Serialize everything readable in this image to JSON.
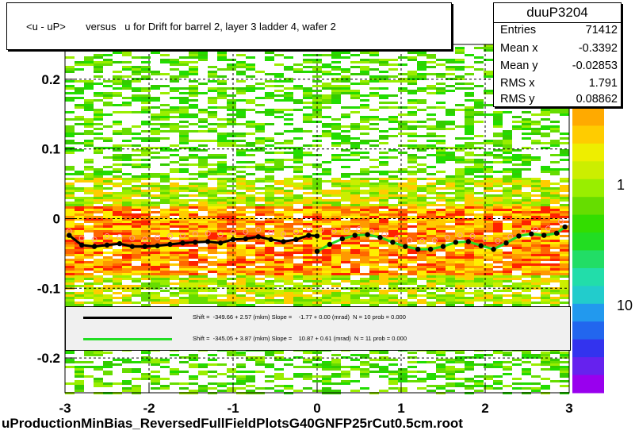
{
  "chart_data": {
    "type": "heatmap",
    "title": "<u - uP>       versus   u for Drift for barrel 2, layer 3 ladder 4, wafer 2",
    "xlabel": "uProductionMinBias_ReversedFullFieldPlotsG40GNFP25rCut0.5cm.root",
    "ylabel": "",
    "xlim": [
      -3,
      3
    ],
    "ylim": [
      -0.25,
      0.25
    ],
    "x_ticks": [
      "-3",
      "-2",
      "-1",
      "0",
      "1",
      "2",
      "3"
    ],
    "y_ticks": [
      "-0.2",
      "-0.1",
      "0",
      "0.1",
      "0.2"
    ],
    "z_ticks": [
      "1",
      "10"
    ],
    "z_scale": "log",
    "grid": true,
    "colors": {
      "frame": "#000000",
      "series_black": "#000000",
      "series_green": "#22dd22",
      "profile_markers": "#ff9999"
    },
    "stats": {
      "name": "duuP3204",
      "rows": [
        {
          "label": "Entries",
          "value": "71412"
        },
        {
          "label": "Mean x",
          "value": "-0.3392"
        },
        {
          "label": "Mean y",
          "value": "-0.02853"
        },
        {
          "label": "RMS x",
          "value": "1.791"
        },
        {
          "label": "RMS y",
          "value": "0.08862"
        }
      ]
    },
    "legend": [
      {
        "color": "#000000",
        "text": "Shift =  -349.66 + 2.57 (mkm) Slope =    -1.77 + 0.00 (mrad)  N = 10 prob = 0.000"
      },
      {
        "color": "#22dd22",
        "text": "Shift =  -345.05 + 3.87 (mkm) Slope =    10.87 + 0.61 (mrad)  N = 11 prob = 0.000"
      }
    ],
    "series": [
      {
        "x": [
          -2.95,
          -2.8,
          -2.65,
          -2.5,
          -2.35,
          -2.2,
          -2.05,
          -1.9,
          -1.75,
          -1.6,
          -1.45,
          -1.3,
          -1.15,
          -1.0,
          -0.85,
          -0.7,
          -0.55,
          -0.4,
          -0.25,
          -0.1,
          0.0
        ],
        "y": [
          -0.024,
          -0.038,
          -0.04,
          -0.038,
          -0.036,
          -0.04,
          -0.04,
          -0.039,
          -0.037,
          -0.035,
          -0.034,
          -0.033,
          -0.035,
          -0.03,
          -0.029,
          -0.026,
          -0.03,
          -0.033,
          -0.03,
          -0.024,
          -0.025
        ]
      },
      {
        "x": [
          0.0,
          0.15,
          0.3,
          0.45,
          0.6,
          0.75,
          0.9,
          1.05,
          1.2,
          1.35,
          1.5,
          1.65,
          1.8,
          1.95,
          2.1,
          2.25,
          2.4,
          2.55,
          2.7,
          2.85,
          2.95
        ],
        "y": [
          -0.047,
          -0.037,
          -0.029,
          -0.024,
          -0.023,
          -0.027,
          -0.034,
          -0.04,
          -0.044,
          -0.044,
          -0.04,
          -0.034,
          -0.033,
          -0.039,
          -0.044,
          -0.035,
          -0.025,
          -0.022,
          -0.024,
          -0.021,
          -0.012
        ]
      },
      {
        "x": [
          -2.95,
          -2.8,
          -2.65,
          -2.5,
          -2.35,
          -2.2,
          -2.05,
          -1.9,
          -1.75,
          -1.6,
          -1.45,
          -1.3,
          -1.15,
          -1.0,
          -0.85,
          -0.7,
          -0.55,
          -0.4,
          -0.25,
          -0.1,
          0.05,
          0.2,
          0.35,
          0.5,
          0.65,
          0.8,
          0.95,
          1.1,
          1.25,
          1.4,
          1.55,
          1.7,
          1.85,
          2.0,
          2.15,
          2.3,
          2.45,
          2.6,
          2.75,
          2.9
        ],
        "y": [
          -0.018,
          -0.028,
          -0.03,
          -0.025,
          -0.026,
          -0.028,
          -0.03,
          -0.027,
          -0.025,
          -0.024,
          -0.022,
          -0.021,
          -0.023,
          -0.02,
          -0.019,
          -0.016,
          -0.02,
          -0.022,
          -0.019,
          -0.014,
          -0.016,
          -0.018,
          -0.017,
          -0.015,
          -0.019,
          -0.023,
          -0.028,
          -0.031,
          -0.032,
          -0.031,
          -0.027,
          -0.024,
          -0.025,
          -0.029,
          -0.032,
          -0.026,
          -0.018,
          -0.016,
          -0.014,
          -0.004
        ]
      }
    ]
  }
}
